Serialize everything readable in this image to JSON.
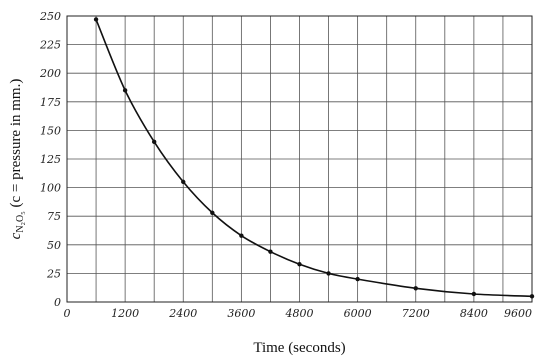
{
  "chart_data": {
    "type": "line",
    "title": "",
    "xlabel": "Time (seconds)",
    "ylabel": "c_{N2O5} (c = pressure in mm.)",
    "ylabel_parts": {
      "c": "c",
      "sub": "N₂O₅",
      "rest": " (c = pressure in mm.)"
    },
    "xlim": [
      0,
      9600
    ],
    "ylim": [
      0,
      250
    ],
    "x_ticks": [
      0,
      600,
      1200,
      1800,
      2400,
      3000,
      3600,
      4200,
      4800,
      5400,
      6000,
      6600,
      7200,
      7800,
      8400,
      9000,
      9600
    ],
    "x_tick_labels": [
      "0",
      "1200",
      "2400",
      "3600",
      "4800",
      "6000",
      "7200",
      "8400",
      "9600"
    ],
    "x_tick_label_values": [
      0,
      1200,
      2400,
      3600,
      4800,
      6000,
      7200,
      8400,
      9600
    ],
    "y_ticks": [
      0,
      25,
      50,
      75,
      100,
      125,
      150,
      175,
      200,
      225,
      250
    ],
    "y_tick_labels": [
      "0",
      "25",
      "50",
      "75",
      "100",
      "125",
      "150",
      "175",
      "200",
      "225",
      "250"
    ],
    "grid": true,
    "series": [
      {
        "x": [
          600,
          1200,
          1800,
          2400,
          3000,
          3600,
          4200,
          4800,
          5400,
          6000,
          7200,
          8400,
          9600
        ],
        "y": [
          247,
          185,
          140,
          105,
          78,
          58,
          44,
          33,
          25,
          20,
          12,
          7,
          5
        ]
      }
    ]
  }
}
